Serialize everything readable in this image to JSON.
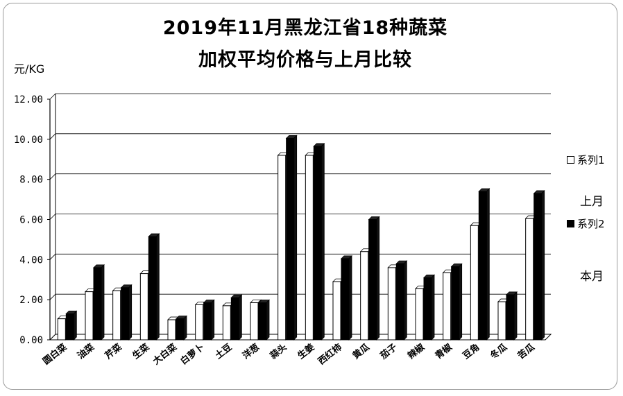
{
  "chart_data": {
    "type": "bar",
    "title_line1": "2019年11月黑龙江省18种蔬菜",
    "title_line2": "加权平均价格与上月比较",
    "ylabel": "元/KG",
    "ylim": [
      0,
      12
    ],
    "yticks": [
      "0.00",
      "2.00",
      "4.00",
      "6.00",
      "8.00",
      "10.00",
      "12.00"
    ],
    "grid": true,
    "categories": [
      "圆白菜",
      "油菜",
      "芹菜",
      "生菜",
      "大白菜",
      "白萝卜",
      "土豆",
      "洋葱",
      "蒜头",
      "生姜",
      "西红柿",
      "黄瓜",
      "茄子",
      "辣椒",
      "青椒",
      "豆角",
      "冬瓜",
      "苦瓜"
    ],
    "series": [
      {
        "name": "系列1",
        "color": "#ffffff",
        "values": [
          1.05,
          2.4,
          2.45,
          3.3,
          1.0,
          1.75,
          1.7,
          1.85,
          9.2,
          9.2,
          2.9,
          4.4,
          3.6,
          2.55,
          3.35,
          5.7,
          1.9,
          6.05
        ]
      },
      {
        "name": "系列2",
        "color": "#000000",
        "values": [
          1.3,
          3.6,
          2.6,
          5.15,
          1.05,
          1.85,
          2.1,
          1.85,
          10.05,
          9.65,
          4.05,
          6.0,
          3.8,
          3.1,
          3.65,
          7.4,
          2.25,
          7.3
        ]
      }
    ],
    "legend_position": "right",
    "side_labels": [
      "上月",
      "本月"
    ]
  }
}
